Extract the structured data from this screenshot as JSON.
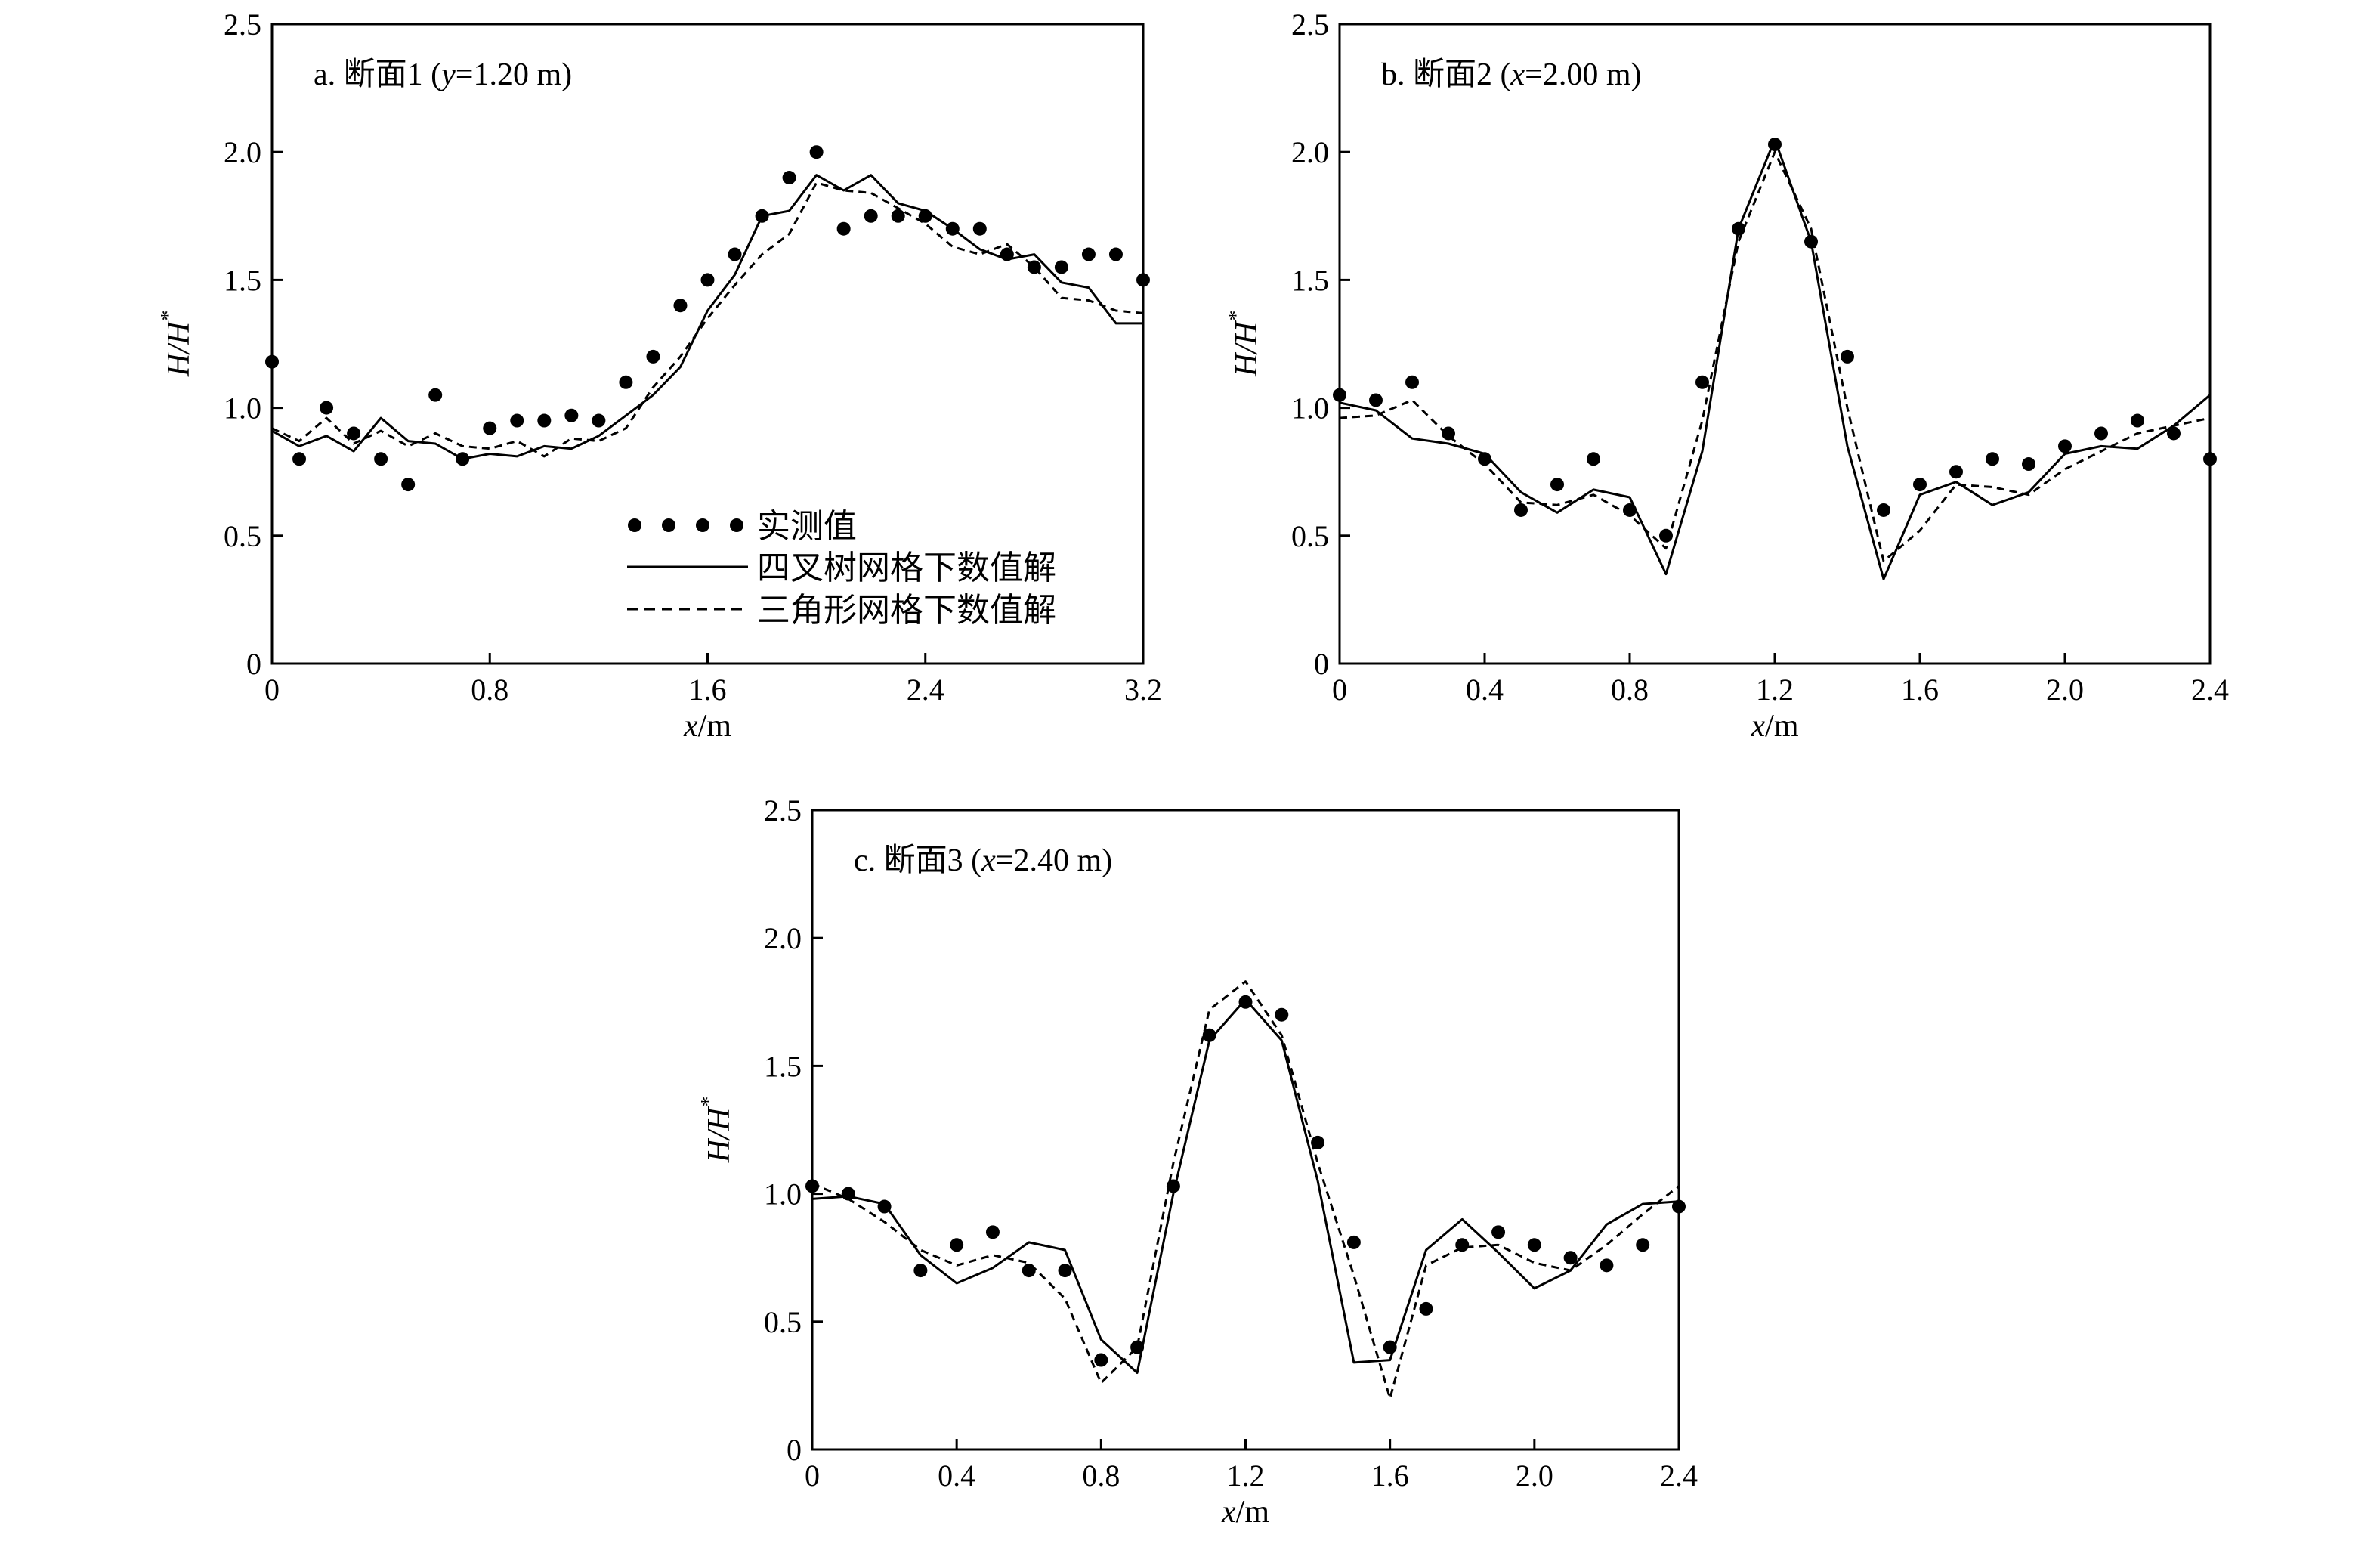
{
  "chart_data": [
    {
      "id": "a",
      "type": "line",
      "title_prefix": "a. 断面1 (",
      "title_var": "y",
      "title_suffix": "=1.20 m)",
      "xlabel_var": "x",
      "xlabel_unit": "/m",
      "ylabel_main": "H/H",
      "ylabel_sup": "*",
      "xlim": [
        0,
        3.2
      ],
      "ylim": [
        0,
        2.5
      ],
      "xticks": [
        0,
        0.8,
        1.6,
        2.4,
        3.2
      ],
      "xtick_labels": [
        "0",
        "0.8",
        "1.6",
        "2.4",
        "3.2"
      ],
      "yticks": [
        0,
        0.5,
        1.0,
        1.5,
        2.0,
        2.5
      ],
      "ytick_labels": [
        "0",
        "0.5",
        "1.0",
        "1.5",
        "2.0",
        "2.5"
      ],
      "series": [
        {
          "style": "dots",
          "x": [
            0,
            0.1,
            0.2,
            0.3,
            0.4,
            0.5,
            0.6,
            0.7,
            0.8,
            0.9,
            1.0,
            1.1,
            1.2,
            1.3,
            1.4,
            1.5,
            1.6,
            1.7,
            1.8,
            1.9,
            2.0,
            2.1,
            2.2,
            2.3,
            2.4,
            2.5,
            2.6,
            2.7,
            2.8,
            2.9,
            3.0,
            3.1,
            3.2
          ],
          "y": [
            1.18,
            0.8,
            1.0,
            0.9,
            0.8,
            0.7,
            1.05,
            0.8,
            0.92,
            0.95,
            0.95,
            0.97,
            0.95,
            1.1,
            1.2,
            1.4,
            1.5,
            1.6,
            1.75,
            1.9,
            2.0,
            1.7,
            1.75,
            1.75,
            1.75,
            1.7,
            1.7,
            1.6,
            1.55,
            1.55,
            1.6,
            1.6,
            1.5
          ]
        },
        {
          "style": "solid",
          "x": [
            0,
            0.1,
            0.2,
            0.3,
            0.4,
            0.5,
            0.6,
            0.7,
            0.8,
            0.9,
            1.0,
            1.1,
            1.2,
            1.3,
            1.4,
            1.5,
            1.6,
            1.7,
            1.8,
            1.9,
            2.0,
            2.1,
            2.2,
            2.3,
            2.4,
            2.5,
            2.6,
            2.7,
            2.8,
            2.9,
            3.0,
            3.1,
            3.2
          ],
          "y": [
            0.91,
            0.85,
            0.89,
            0.83,
            0.96,
            0.87,
            0.86,
            0.8,
            0.82,
            0.81,
            0.85,
            0.84,
            0.89,
            0.97,
            1.05,
            1.16,
            1.38,
            1.52,
            1.75,
            1.77,
            1.91,
            1.85,
            1.91,
            1.8,
            1.77,
            1.7,
            1.62,
            1.58,
            1.6,
            1.49,
            1.47,
            1.33,
            1.33
          ]
        },
        {
          "style": "dashed",
          "x": [
            0,
            0.1,
            0.2,
            0.3,
            0.4,
            0.5,
            0.6,
            0.7,
            0.8,
            0.9,
            1.0,
            1.1,
            1.2,
            1.3,
            1.4,
            1.5,
            1.6,
            1.7,
            1.8,
            1.9,
            2.0,
            2.1,
            2.2,
            2.3,
            2.4,
            2.5,
            2.6,
            2.7,
            2.8,
            2.9,
            3.0,
            3.1,
            3.2
          ],
          "y": [
            0.92,
            0.87,
            0.96,
            0.86,
            0.91,
            0.85,
            0.9,
            0.85,
            0.84,
            0.87,
            0.81,
            0.88,
            0.87,
            0.92,
            1.08,
            1.2,
            1.35,
            1.48,
            1.6,
            1.68,
            1.88,
            1.85,
            1.84,
            1.78,
            1.72,
            1.63,
            1.6,
            1.64,
            1.55,
            1.43,
            1.42,
            1.38,
            1.37
          ]
        }
      ],
      "legend": {
        "placement": "bottom-center",
        "entries": [
          "实测值",
          "四叉树网格下数值解",
          "三角形网格下数值解"
        ]
      }
    },
    {
      "id": "b",
      "type": "line",
      "title_prefix": "b. 断面2 (",
      "title_var": "x",
      "title_suffix": "=2.00 m)",
      "xlabel_var": "x",
      "xlabel_unit": "/m",
      "ylabel_main": "H/H",
      "ylabel_sup": "*",
      "xlim": [
        0,
        2.4
      ],
      "ylim": [
        0,
        2.5
      ],
      "xticks": [
        0,
        0.4,
        0.8,
        1.2,
        1.6,
        2.0,
        2.4
      ],
      "xtick_labels": [
        "0",
        "0.4",
        "0.8",
        "1.2",
        "1.6",
        "2.0",
        "2.4"
      ],
      "yticks": [
        0,
        0.5,
        1.0,
        1.5,
        2.0,
        2.5
      ],
      "ytick_labels": [
        "0",
        "0.5",
        "1.0",
        "1.5",
        "2.0",
        "2.5"
      ],
      "series": [
        {
          "style": "dots",
          "x": [
            0,
            0.1,
            0.2,
            0.3,
            0.4,
            0.5,
            0.6,
            0.7,
            0.8,
            0.9,
            1.0,
            1.1,
            1.2,
            1.3,
            1.4,
            1.5,
            1.6,
            1.7,
            1.8,
            1.9,
            2.0,
            2.1,
            2.2,
            2.3,
            2.4
          ],
          "y": [
            1.05,
            1.03,
            1.1,
            0.9,
            0.8,
            0.6,
            0.7,
            0.8,
            0.6,
            0.5,
            1.1,
            1.7,
            2.03,
            1.65,
            1.2,
            0.6,
            0.7,
            0.75,
            0.8,
            0.78,
            0.85,
            0.9,
            0.95,
            0.9,
            0.8
          ]
        },
        {
          "style": "solid",
          "x": [
            0,
            0.1,
            0.2,
            0.3,
            0.4,
            0.5,
            0.6,
            0.7,
            0.8,
            0.9,
            1.0,
            1.1,
            1.2,
            1.3,
            1.4,
            1.5,
            1.6,
            1.7,
            1.8,
            1.9,
            2.0,
            2.1,
            2.2,
            2.3,
            2.4
          ],
          "y": [
            1.02,
            0.99,
            0.88,
            0.86,
            0.82,
            0.67,
            0.59,
            0.68,
            0.65,
            0.35,
            0.83,
            1.7,
            2.05,
            1.65,
            0.85,
            0.33,
            0.66,
            0.71,
            0.62,
            0.67,
            0.82,
            0.85,
            0.84,
            0.93,
            1.05
          ]
        },
        {
          "style": "dashed",
          "x": [
            0,
            0.1,
            0.2,
            0.3,
            0.4,
            0.5,
            0.6,
            0.7,
            0.8,
            0.9,
            1.0,
            1.1,
            1.2,
            1.3,
            1.4,
            1.5,
            1.6,
            1.7,
            1.8,
            1.9,
            2.0,
            2.1,
            2.2,
            2.3,
            2.4
          ],
          "y": [
            0.96,
            0.97,
            1.03,
            0.89,
            0.78,
            0.63,
            0.62,
            0.66,
            0.58,
            0.45,
            0.95,
            1.65,
            2.0,
            1.7,
            1.0,
            0.4,
            0.52,
            0.7,
            0.69,
            0.66,
            0.76,
            0.83,
            0.9,
            0.93,
            0.96
          ]
        }
      ]
    },
    {
      "id": "c",
      "type": "line",
      "title_prefix": "c. 断面3 (",
      "title_var": "x",
      "title_suffix": "=2.40 m)",
      "xlabel_var": "x",
      "xlabel_unit": "/m",
      "ylabel_main": "H/H",
      "ylabel_sup": "*",
      "xlim": [
        0,
        2.4
      ],
      "ylim": [
        0,
        2.5
      ],
      "xticks": [
        0,
        0.4,
        0.8,
        1.2,
        1.6,
        2.0,
        2.4
      ],
      "xtick_labels": [
        "0",
        "0.4",
        "0.8",
        "1.2",
        "1.6",
        "2.0",
        "2.4"
      ],
      "yticks": [
        0,
        0.5,
        1.0,
        1.5,
        2.0,
        2.5
      ],
      "ytick_labels": [
        "0",
        "0.5",
        "1.0",
        "1.5",
        "2.0",
        "2.5"
      ],
      "series": [
        {
          "style": "dots",
          "x": [
            0,
            0.1,
            0.2,
            0.3,
            0.4,
            0.5,
            0.6,
            0.7,
            0.8,
            0.9,
            1.0,
            1.1,
            1.2,
            1.3,
            1.4,
            1.5,
            1.6,
            1.7,
            1.8,
            1.9,
            2.0,
            2.1,
            2.2,
            2.3,
            2.4
          ],
          "y": [
            1.03,
            1.0,
            0.95,
            0.7,
            0.8,
            0.85,
            0.7,
            0.7,
            0.35,
            0.4,
            1.03,
            1.62,
            1.75,
            1.7,
            1.2,
            0.81,
            0.4,
            0.55,
            0.8,
            0.85,
            0.8,
            0.75,
            0.72,
            0.8,
            0.95
          ]
        },
        {
          "style": "solid",
          "x": [
            0,
            0.1,
            0.2,
            0.3,
            0.4,
            0.5,
            0.6,
            0.7,
            0.8,
            0.9,
            1.0,
            1.1,
            1.2,
            1.3,
            1.4,
            1.5,
            1.6,
            1.7,
            1.8,
            1.9,
            2.0,
            2.1,
            2.2,
            2.3,
            2.4
          ],
          "y": [
            0.98,
            0.99,
            0.96,
            0.76,
            0.65,
            0.71,
            0.81,
            0.78,
            0.43,
            0.3,
            1.0,
            1.6,
            1.76,
            1.6,
            1.05,
            0.34,
            0.35,
            0.78,
            0.9,
            0.77,
            0.63,
            0.7,
            0.88,
            0.96,
            0.97
          ]
        },
        {
          "style": "dashed",
          "x": [
            0,
            0.1,
            0.2,
            0.3,
            0.4,
            0.5,
            0.6,
            0.7,
            0.8,
            0.9,
            1.0,
            1.1,
            1.2,
            1.3,
            1.4,
            1.5,
            1.6,
            1.7,
            1.8,
            1.9,
            2.0,
            2.1,
            2.2,
            2.3,
            2.4
          ],
          "y": [
            1.04,
            0.98,
            0.89,
            0.78,
            0.72,
            0.76,
            0.73,
            0.59,
            0.26,
            0.4,
            1.12,
            1.72,
            1.83,
            1.62,
            1.12,
            0.68,
            0.2,
            0.72,
            0.79,
            0.8,
            0.73,
            0.7,
            0.8,
            0.92,
            1.03
          ]
        }
      ]
    }
  ]
}
